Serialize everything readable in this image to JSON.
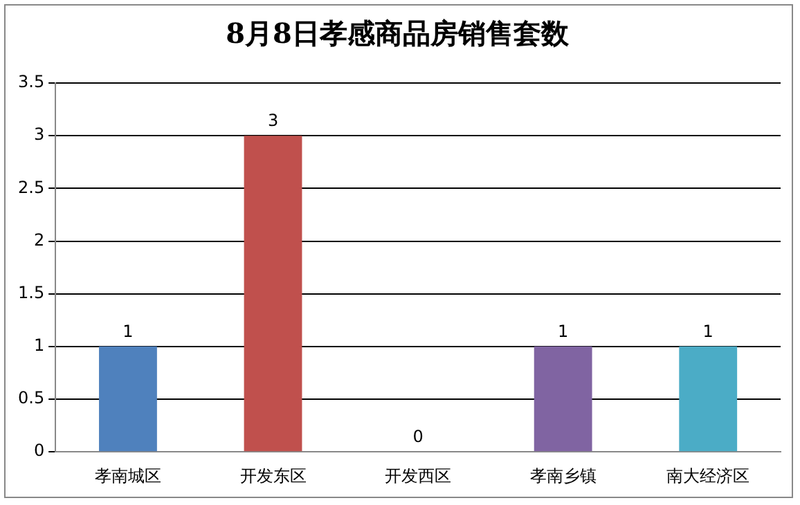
{
  "chart_data": {
    "type": "bar",
    "title": "8月8日孝感商品房销售套数",
    "categories": [
      "孝南城区",
      "开发东区",
      "开发西区",
      "孝南乡镇",
      "南大经济区"
    ],
    "values": [
      1,
      3,
      0,
      1,
      1
    ],
    "colors": [
      "#4f81bd",
      "#c0504d",
      "#9bbb59",
      "#8064a2",
      "#4bacc6"
    ],
    "ylim": [
      0,
      3.5
    ],
    "yticks": [
      0,
      0.5,
      1,
      1.5,
      2,
      2.5,
      3,
      3.5
    ],
    "grid": "y",
    "data_labels": true,
    "legend": false
  }
}
